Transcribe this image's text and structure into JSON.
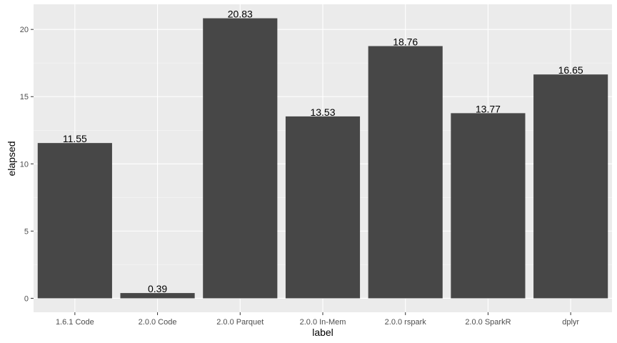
{
  "chart_data": {
    "type": "bar",
    "categories": [
      "1.6.1 Code",
      "2.0.0 Code",
      "2.0.0 Parquet",
      "2.0.0 In-Mem",
      "2.0.0 rspark",
      "2.0.0 SparkR",
      "dplyr"
    ],
    "values": [
      11.55,
      0.39,
      20.83,
      13.53,
      18.76,
      13.77,
      16.65
    ],
    "data_labels": [
      "11.55",
      "0.39",
      "20.83",
      "13.53",
      "18.76",
      "13.77",
      "16.65"
    ],
    "xlabel": "label",
    "ylabel": "elapsed",
    "yticks": [
      0,
      5,
      10,
      15,
      20
    ],
    "ylim": [
      -1.04,
      21.87
    ],
    "grid": true,
    "colors": {
      "bar": "#474747",
      "panel": "#ebebeb",
      "grid": "#ffffff"
    }
  }
}
